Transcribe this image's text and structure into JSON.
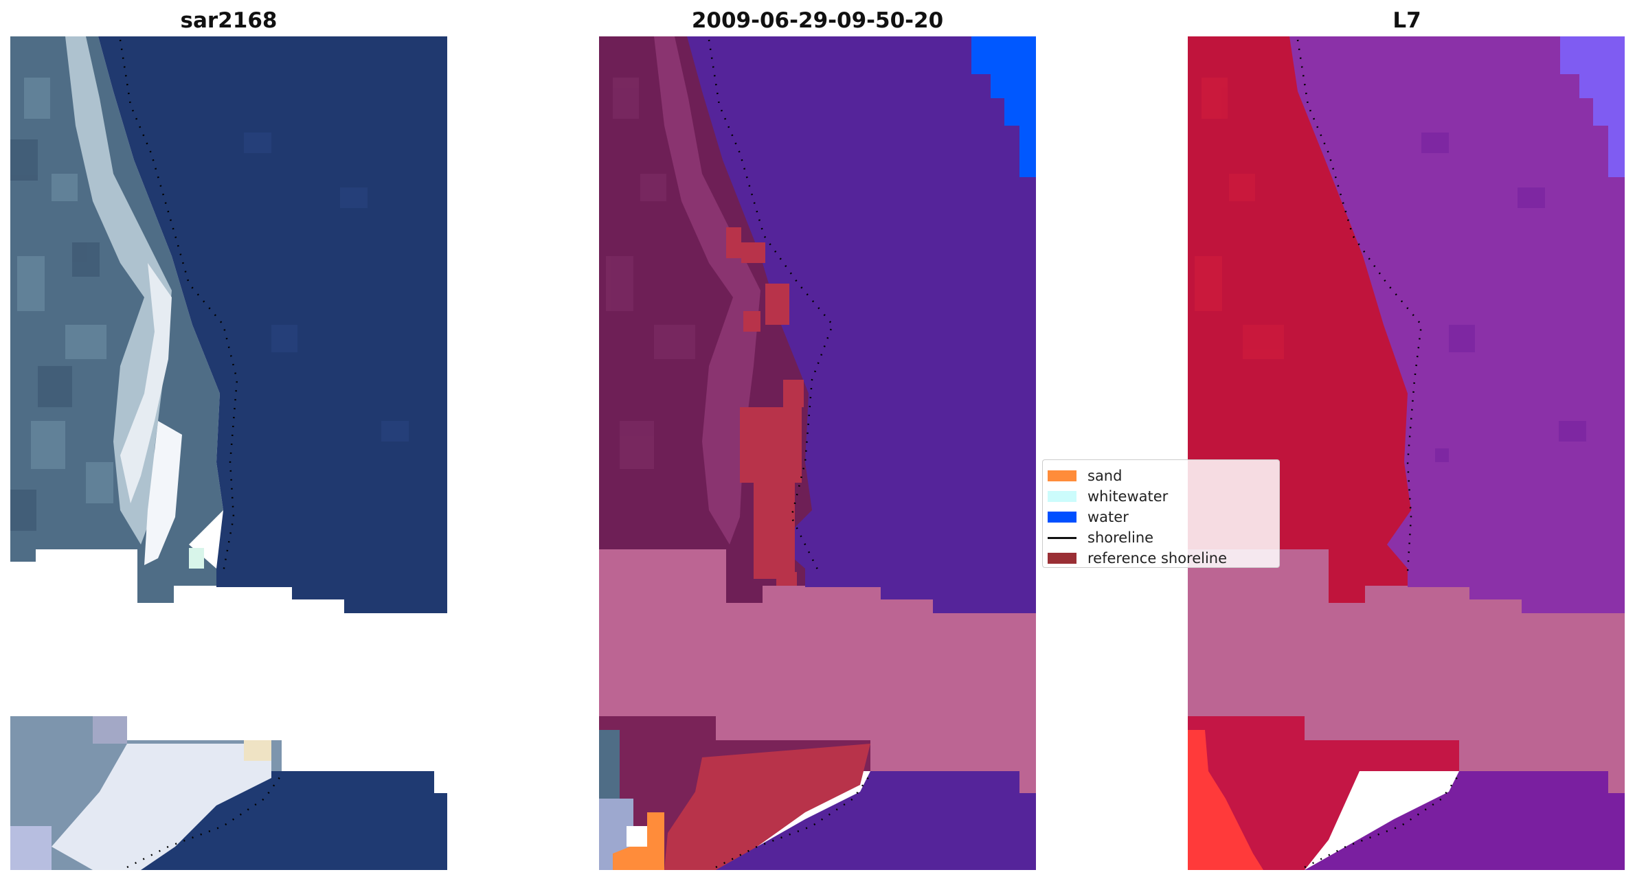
{
  "panels": [
    {
      "title": "sar2168",
      "image": "rgb-satellite-image"
    },
    {
      "title": "2009-06-29-09-50-20",
      "image": "classified-image"
    },
    {
      "title": "L7",
      "image": "mndwi-image"
    }
  ],
  "legend": {
    "items": [
      {
        "label": "sand",
        "color": "#ff8c3a",
        "kind": "patch"
      },
      {
        "label": "whitewater",
        "color": "#ccfcfc",
        "kind": "patch"
      },
      {
        "label": "water",
        "color": "#0050ff",
        "kind": "patch"
      },
      {
        "label": "shoreline",
        "color": "#000000",
        "kind": "line"
      },
      {
        "label": "reference shoreline",
        "color": "#9a2f35",
        "kind": "patch"
      }
    ]
  }
}
